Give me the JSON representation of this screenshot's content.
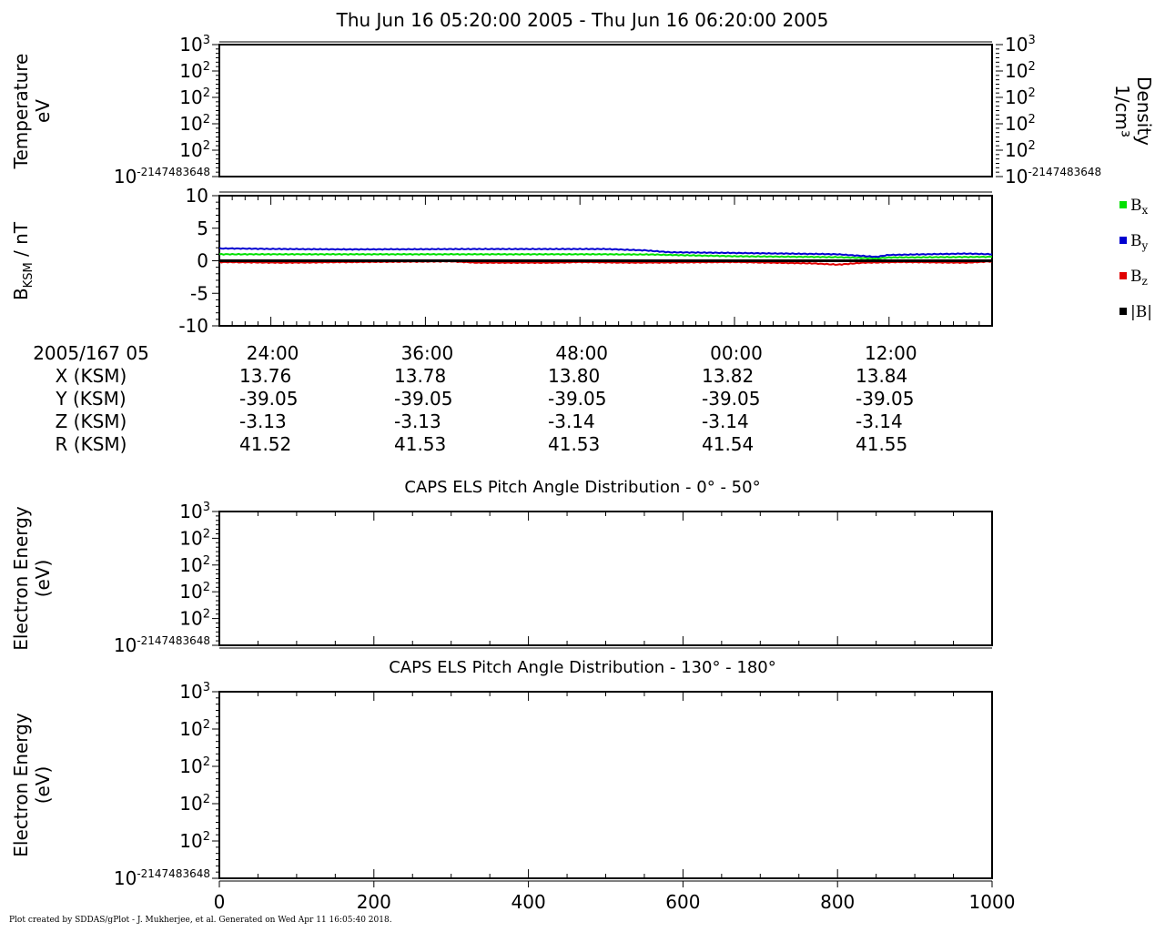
{
  "header": {
    "title": "Thu Jun 16 05:20:00 2005 - Thu Jun 16 06:20:00 2005"
  },
  "footer": {
    "text": "Plot created by SDDAS/gPlot - J. Mukherjee, et al.  Generated on Wed Apr 11 16:05:40 2018."
  },
  "ephemeris": {
    "date_label": "2005/167 05",
    "rows": [
      {
        "label": "X (KSM)",
        "values": [
          "13.76",
          "13.78",
          "13.80",
          "13.82",
          "13.84"
        ]
      },
      {
        "label": "Y (KSM)",
        "values": [
          "-39.05",
          "-39.05",
          "-39.05",
          "-39.05",
          "-39.05"
        ]
      },
      {
        "label": "Z (KSM)",
        "values": [
          "-3.13",
          "-3.13",
          "-3.14",
          "-3.14",
          "-3.14"
        ]
      },
      {
        "label": "R (KSM)",
        "values": [
          "41.52",
          "41.53",
          "41.53",
          "41.54",
          "41.55"
        ]
      }
    ]
  },
  "chart_data": [
    {
      "type": "line",
      "ylabel": [
        "Temperature",
        "eV"
      ],
      "y2label": [
        "Density",
        "1/cm³"
      ],
      "yticks": [
        "10³",
        "10²",
        "10²",
        "10²",
        "10²",
        "10⁻²¹⁴⁷⁴⁸³⁶⁴⁸"
      ],
      "y2ticks": [
        "10³",
        "10²",
        "10²",
        "10²",
        "10²",
        "10⁻²¹⁴⁷⁴⁸³⁶⁴⁸"
      ],
      "series": []
    },
    {
      "type": "line",
      "ylabel": "Bₖₛₘ / nT",
      "ylabel_main": "B",
      "ylabel_sub": "KSM",
      "ylabel_rest": " / nT",
      "ylim": [
        -10,
        10
      ],
      "yticks": [
        "10",
        "5",
        "0",
        "-5",
        "-10"
      ],
      "xlim": [
        0,
        60
      ],
      "xticks": [
        {
          "t": 4,
          "label": "24:00"
        },
        {
          "t": 16,
          "label": "36:00"
        },
        {
          "t": 28,
          "label": "48:00"
        },
        {
          "t": 40,
          "label": "00:00"
        },
        {
          "t": 52,
          "label": "12:00"
        }
      ],
      "xunit": "minutes from 05:20:00",
      "legend": [
        {
          "name": "B",
          "sub": "x",
          "color": "#00e000"
        },
        {
          "name": "B",
          "sub": "y",
          "color": "#0000d0"
        },
        {
          "name": "B",
          "sub": "z",
          "color": "#e00000"
        },
        {
          "name": "|B|",
          "sub": "",
          "color": "#000000"
        }
      ],
      "series": [
        {
          "name": "Bx",
          "color": "#00e000",
          "x": [
            0,
            10,
            20,
            30,
            34,
            36,
            40,
            48,
            51,
            52,
            60
          ],
          "y": [
            1.0,
            1.0,
            1.0,
            1.0,
            0.95,
            0.85,
            0.7,
            0.55,
            0.35,
            0.5,
            0.6
          ]
        },
        {
          "name": "By",
          "color": "#0000d0",
          "x": [
            0,
            5,
            10,
            20,
            30,
            33,
            35,
            40,
            48,
            51,
            52,
            58,
            60
          ],
          "y": [
            1.9,
            1.8,
            1.75,
            1.8,
            1.8,
            1.6,
            1.3,
            1.2,
            1.0,
            0.6,
            0.9,
            1.1,
            1.0
          ]
        },
        {
          "name": "Bz",
          "color": "#e00000",
          "x": [
            0,
            5,
            10,
            18,
            20,
            26,
            28,
            32,
            40,
            46,
            48,
            50,
            53,
            58,
            60
          ],
          "y": [
            -0.2,
            -0.3,
            -0.2,
            -0.1,
            -0.3,
            -0.3,
            -0.2,
            -0.3,
            -0.2,
            -0.4,
            -0.6,
            -0.3,
            -0.2,
            -0.3,
            -0.1
          ]
        },
        {
          "name": "|B|",
          "color": "#000000",
          "x": [
            0,
            60
          ],
          "y": [
            0,
            0
          ]
        }
      ]
    },
    {
      "type": "heatmap",
      "title": "CAPS ELS Pitch Angle Distribution - 0° - 50°",
      "ylabel": [
        "Electron Energy",
        "(eV)"
      ],
      "yticks": [
        "10³",
        "10²",
        "10²",
        "10²",
        "10²",
        "10⁻²¹⁴⁷⁴⁸³⁶⁴⁸"
      ]
    },
    {
      "type": "heatmap",
      "title": "CAPS ELS Pitch Angle Distribution - 130° - 180°",
      "ylabel": [
        "Electron Energy",
        "(eV)"
      ],
      "yticks": [
        "10³",
        "10²",
        "10²",
        "10²",
        "10²",
        "10⁻²¹⁴⁷⁴⁸³⁶⁴⁸"
      ],
      "xticks": [
        "0",
        "200",
        "400",
        "600",
        "800",
        "1000"
      ],
      "xlim": [
        0,
        1000
      ]
    }
  ]
}
